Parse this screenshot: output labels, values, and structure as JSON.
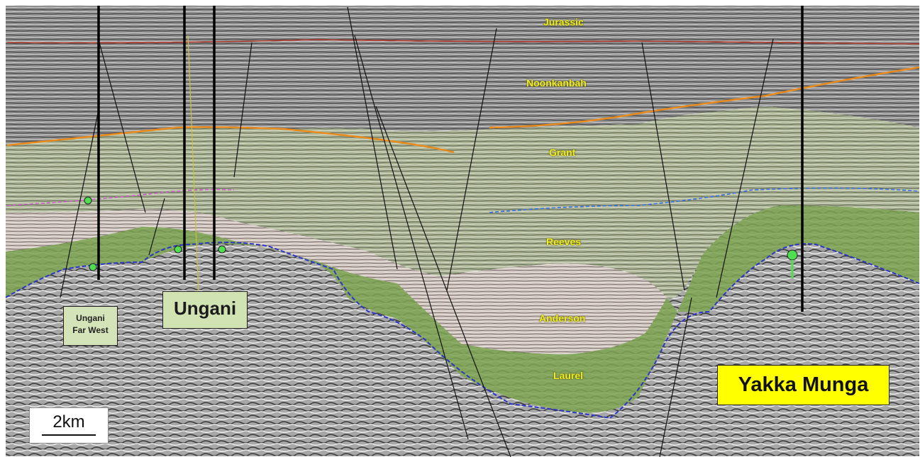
{
  "formations": {
    "jurassic": "Jurassic",
    "noonkanbah": "Noonkanbah",
    "grant": "Grant",
    "reeves": "Reeves",
    "anderson": "Anderson",
    "laurel": "Laurel"
  },
  "fields": {
    "ungani_far_west_line1": "Ungani",
    "ungani_far_west_line2": "Far West",
    "ungani": "Ungani",
    "yakka_munga": "Yakka Munga"
  },
  "scale_bar": {
    "label": "2km"
  },
  "colors": {
    "formation_label": "#f2ee1a",
    "ungani_box": "#d2e3b3",
    "yakka_box": "#ffff00",
    "green_interval": "#7ea450",
    "basement": "#9a9a9a"
  }
}
